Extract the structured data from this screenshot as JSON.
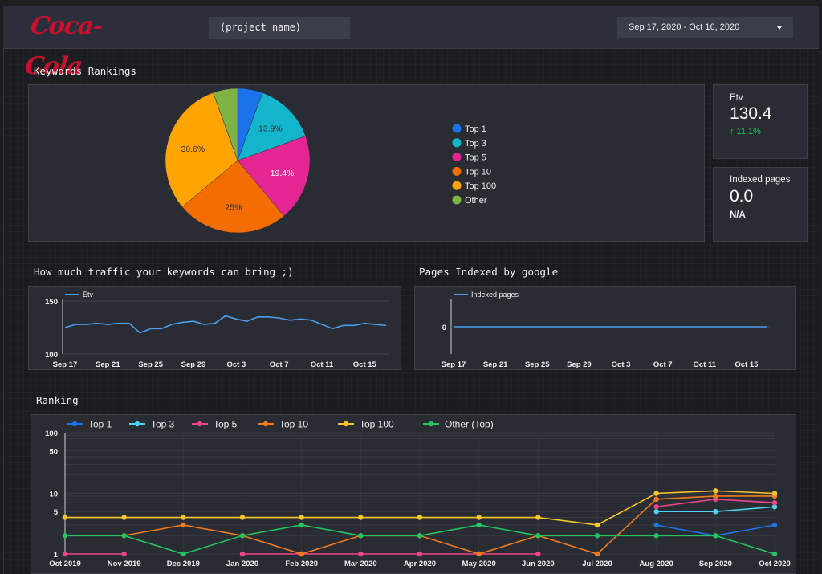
{
  "header": {
    "logo_text": "Coca-Cola",
    "project_name": "(project name)",
    "date_range": "Sep 17, 2020 - Oct 16, 2020"
  },
  "keywords_rankings": {
    "title": "Keywords Rankings",
    "chart_data": {
      "type": "pie",
      "slices": [
        {
          "label": "Top 1",
          "value": 5.6,
          "color": "#1a73e8",
          "show_label": false
        },
        {
          "label": "Top 3",
          "value": 13.9,
          "color": "#12b5cb",
          "show_label": true,
          "text": "13.9%"
        },
        {
          "label": "Top 5",
          "value": 19.4,
          "color": "#e52592",
          "show_label": true,
          "text": "19.4%"
        },
        {
          "label": "Top 10",
          "value": 25,
          "color": "#f46d02",
          "show_label": true,
          "text": "25%"
        },
        {
          "label": "Top 100",
          "value": 30.6,
          "color": "#ffa400",
          "show_label": true,
          "text": "30.6%"
        },
        {
          "label": "Other",
          "value": 5.5,
          "color": "#7cb342",
          "show_label": false
        }
      ],
      "legend_position": "right"
    }
  },
  "kpi_etv": {
    "label": "Etv",
    "value": "130.4",
    "delta": "↑ 11.1%",
    "delta_color": "#1ec85a"
  },
  "kpi_indexed": {
    "label": "Indexed pages",
    "value": "0.0",
    "delta": "N/A"
  },
  "traffic": {
    "title": "How much traffic your keywords can bring ;)",
    "chart_data": {
      "type": "line",
      "series": [
        {
          "name": "Etv",
          "color": "#4a9ff0",
          "values": [
            125,
            128,
            128,
            129,
            128,
            129,
            129,
            120,
            124,
            124,
            128,
            130,
            131,
            128,
            129,
            136,
            133,
            131,
            135,
            135,
            134,
            132,
            133,
            132,
            128,
            124,
            127,
            127,
            129,
            128,
            127
          ]
        }
      ],
      "x_ticks": [
        "Sep 17",
        "Sep 21",
        "Sep 25",
        "Sep 29",
        "Oct 3",
        "Oct 7",
        "Oct 11",
        "Oct 15"
      ],
      "y_ticks": [
        "150",
        "100"
      ],
      "ylim": [
        100,
        150
      ]
    }
  },
  "indexed": {
    "title": "Pages Indexed by google",
    "chart_data": {
      "type": "line",
      "series": [
        {
          "name": "Indexed pages",
          "color": "#4a9ff0",
          "values": [
            0,
            0,
            0,
            0,
            0,
            0,
            0,
            0,
            0,
            0,
            0,
            0,
            0,
            0,
            0,
            0,
            0,
            0,
            0,
            0,
            0,
            0,
            0,
            0,
            0,
            0,
            0,
            0,
            0,
            0,
            0
          ]
        }
      ],
      "x_ticks": [
        "Sep 17",
        "Sep 21",
        "Sep 25",
        "Sep 29",
        "Oct 3",
        "Oct 7",
        "Oct 11",
        "Oct 15"
      ],
      "y_ticks": [
        "0"
      ]
    }
  },
  "ranking": {
    "title": "Ranking",
    "chart_data": {
      "type": "line",
      "scale": "log",
      "categories": [
        "Oct 2019",
        "Nov 2019",
        "Dec 2019",
        "Jan 2020",
        "Feb 2020",
        "Mar 2020",
        "Apr 2020",
        "May 2020",
        "Jun 2020",
        "Jul 2020",
        "Aug 2020",
        "Sep 2020",
        "Oct 2020"
      ],
      "y_ticks": [
        "100",
        "50",
        "10",
        "5",
        "1"
      ],
      "series": [
        {
          "name": "Top 1",
          "color": "#1a73e8",
          "values": [
            null,
            null,
            null,
            null,
            null,
            null,
            null,
            null,
            null,
            null,
            3,
            2,
            3
          ]
        },
        {
          "name": "Top 3",
          "color": "#4ad5f5",
          "values": [
            null,
            null,
            null,
            null,
            null,
            null,
            null,
            null,
            null,
            null,
            5,
            5,
            6
          ]
        },
        {
          "name": "Top 5",
          "color": "#f0458a",
          "values": [
            1,
            1,
            null,
            1,
            1,
            1,
            1,
            1,
            1,
            null,
            6,
            8,
            7
          ]
        },
        {
          "name": "Top 10",
          "color": "#f07c1d",
          "values": [
            null,
            2,
            3,
            2,
            1,
            2,
            2,
            1,
            2,
            1,
            8,
            9,
            9
          ]
        },
        {
          "name": "Top 100",
          "color": "#f7c52b",
          "values": [
            4,
            4,
            4,
            4,
            4,
            4,
            4,
            4,
            4,
            3,
            10,
            11,
            10
          ]
        },
        {
          "name": "Other (Top)",
          "color": "#22c55e",
          "values": [
            2,
            2,
            1,
            2,
            3,
            2,
            2,
            3,
            2,
            2,
            2,
            2,
            1
          ]
        }
      ],
      "legend_position": "top"
    }
  }
}
